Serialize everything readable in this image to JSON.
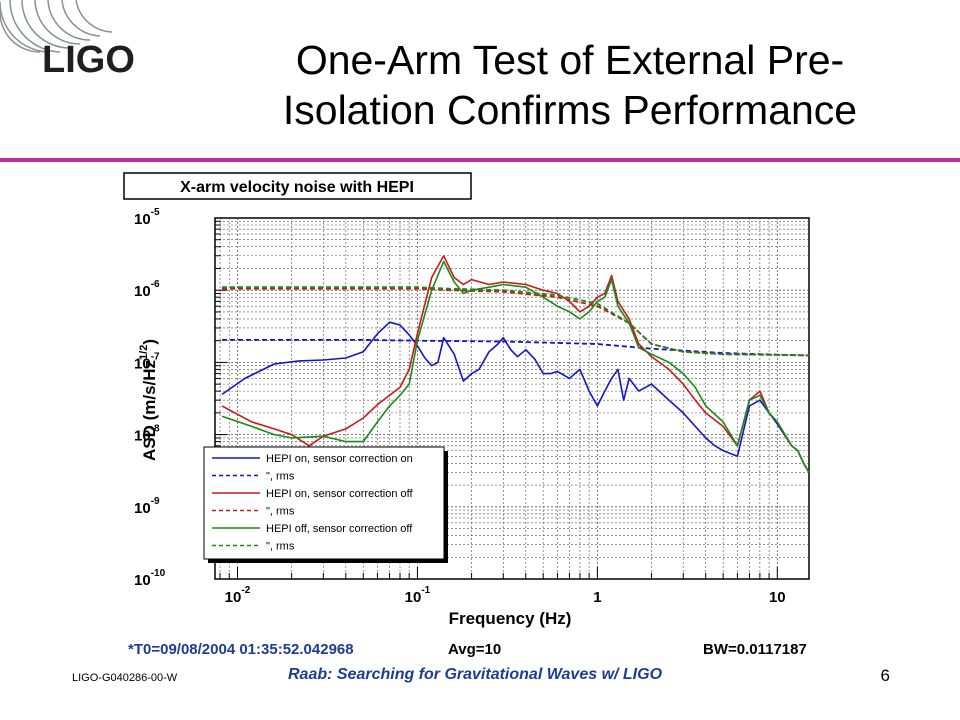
{
  "slide": {
    "logo_text": "LIGO",
    "title_line1": "One-Arm Test of External Pre-",
    "title_line2": "Isolation Confirms Performance",
    "doc_id": "LIGO-G040286-00-W",
    "footer_title": "Raab: Searching for Gravitational Waves w/ LIGO",
    "page_number": "6",
    "accent_color": "#c0309a",
    "footer_color": "#1e3c96"
  },
  "chart_data": {
    "type": "line",
    "title": "X-arm velocity noise with HEPI",
    "xlabel": "Frequency (Hz)",
    "ylabel_main": "ASD (m/s/Hz",
    "ylabel_sup": "1/2",
    "ylabel_close": ")",
    "x_scale": "log",
    "y_scale": "log",
    "xlim": [
      0.0075,
      15
    ],
    "ylim": [
      1e-10,
      1e-05
    ],
    "grid": true,
    "legend_position": "bottom-left",
    "x_ticks": [
      {
        "value": 0.01,
        "base": "10",
        "exp": "-2"
      },
      {
        "value": 0.1,
        "base": "10",
        "exp": "-1"
      },
      {
        "value": 1,
        "base": "1",
        "exp": ""
      },
      {
        "value": 10,
        "base": "10",
        "exp": ""
      }
    ],
    "y_ticks": [
      {
        "value": 1e-05,
        "base": "10",
        "exp": "-5"
      },
      {
        "value": 1e-06,
        "base": "10",
        "exp": "-6"
      },
      {
        "value": 1e-07,
        "base": "10",
        "exp": "-7"
      },
      {
        "value": 1e-08,
        "base": "10",
        "exp": "-8"
      },
      {
        "value": 1e-09,
        "base": "10",
        "exp": "-9"
      },
      {
        "value": 1e-10,
        "base": "10",
        "exp": "-10"
      }
    ],
    "footer": {
      "t0": "*T0=09/08/2004 01:35:52.042968",
      "avg": "Avg=10",
      "bw": "BW=0.0117187"
    },
    "series": [
      {
        "name": "HEPI on, sensor correction on",
        "color": "#1515c8",
        "dash": "solid",
        "points": [
          [
            0.0082,
            3.6e-08
          ],
          [
            0.011,
            6e-08
          ],
          [
            0.016,
            9.5e-08
          ],
          [
            0.022,
            1.05e-07
          ],
          [
            0.03,
            1.08e-07
          ],
          [
            0.04,
            1.15e-07
          ],
          [
            0.05,
            1.4e-07
          ],
          [
            0.06,
            2.5e-07
          ],
          [
            0.07,
            3.6e-07
          ],
          [
            0.08,
            3.3e-07
          ],
          [
            0.09,
            2.4e-07
          ],
          [
            0.1,
            1.7e-07
          ],
          [
            0.11,
            1.15e-07
          ],
          [
            0.12,
            9e-08
          ],
          [
            0.13,
            1e-07
          ],
          [
            0.14,
            2.2e-07
          ],
          [
            0.16,
            1.3e-07
          ],
          [
            0.18,
            5.5e-08
          ],
          [
            0.2,
            7e-08
          ],
          [
            0.22,
            8e-08
          ],
          [
            0.25,
            1.4e-07
          ],
          [
            0.28,
            1.8e-07
          ],
          [
            0.3,
            2.2e-07
          ],
          [
            0.33,
            1.5e-07
          ],
          [
            0.36,
            1.2e-07
          ],
          [
            0.4,
            1.5e-07
          ],
          [
            0.45,
            1.1e-07
          ],
          [
            0.5,
            7e-08
          ],
          [
            0.55,
            7e-08
          ],
          [
            0.6,
            7.5e-08
          ],
          [
            0.7,
            6e-08
          ],
          [
            0.8,
            8e-08
          ],
          [
            0.9,
            4e-08
          ],
          [
            1.0,
            2.5e-08
          ],
          [
            1.1,
            4e-08
          ],
          [
            1.2,
            6e-08
          ],
          [
            1.3,
            8e-08
          ],
          [
            1.4,
            3e-08
          ],
          [
            1.5,
            6e-08
          ],
          [
            1.7,
            4e-08
          ],
          [
            2.0,
            5e-08
          ],
          [
            2.5,
            3e-08
          ],
          [
            3.0,
            2e-08
          ],
          [
            3.5,
            1.3e-08
          ],
          [
            4.0,
            9e-09
          ],
          [
            4.5,
            7e-09
          ],
          [
            5.0,
            6e-09
          ],
          [
            6.0,
            5e-09
          ],
          [
            7.0,
            2.5e-08
          ],
          [
            8.0,
            3e-08
          ],
          [
            9.0,
            2e-08
          ],
          [
            10.0,
            1.4e-08
          ],
          [
            12.0,
            7e-09
          ],
          [
            13.0,
            6e-09
          ],
          [
            14.0,
            4e-09
          ],
          [
            15.0,
            3e-09
          ]
        ]
      },
      {
        "name": "\", rms",
        "color": "#1515c8",
        "dash": "dashed",
        "points": [
          [
            0.0082,
            2.05e-07
          ],
          [
            0.05,
            2.05e-07
          ],
          [
            0.1,
            2e-07
          ],
          [
            0.3,
            1.95e-07
          ],
          [
            1.0,
            1.8e-07
          ],
          [
            2.0,
            1.55e-07
          ],
          [
            5.0,
            1.35e-07
          ],
          [
            10.0,
            1.28e-07
          ],
          [
            15.0,
            1.25e-07
          ]
        ]
      },
      {
        "name": "HEPI on, sensor correction off",
        "color": "#c81a1a",
        "dash": "solid",
        "points": [
          [
            0.0082,
            2.5e-08
          ],
          [
            0.012,
            1.5e-08
          ],
          [
            0.016,
            1.2e-08
          ],
          [
            0.02,
            1e-08
          ],
          [
            0.025,
            7e-09
          ],
          [
            0.03,
            9.5e-09
          ],
          [
            0.04,
            1.2e-08
          ],
          [
            0.05,
            1.7e-08
          ],
          [
            0.06,
            2.6e-08
          ],
          [
            0.07,
            3.5e-08
          ],
          [
            0.08,
            4.5e-08
          ],
          [
            0.09,
            8e-08
          ],
          [
            0.1,
            2.5e-07
          ],
          [
            0.12,
            1.5e-06
          ],
          [
            0.14,
            3e-06
          ],
          [
            0.16,
            1.5e-06
          ],
          [
            0.18,
            1.2e-06
          ],
          [
            0.2,
            1.4e-06
          ],
          [
            0.25,
            1.2e-06
          ],
          [
            0.3,
            1.3e-06
          ],
          [
            0.4,
            1.2e-06
          ],
          [
            0.5,
            1e-06
          ],
          [
            0.6,
            9e-07
          ],
          [
            0.7,
            7e-07
          ],
          [
            0.8,
            5e-07
          ],
          [
            0.9,
            6e-07
          ],
          [
            1.0,
            8e-07
          ],
          [
            1.1,
            9e-07
          ],
          [
            1.2,
            1.6e-06
          ],
          [
            1.3,
            7e-07
          ],
          [
            1.5,
            4e-07
          ],
          [
            1.7,
            1.8e-07
          ],
          [
            2.0,
            1.2e-07
          ],
          [
            2.5,
            8e-08
          ],
          [
            3.0,
            5e-08
          ],
          [
            3.5,
            3e-08
          ],
          [
            4.0,
            2e-08
          ],
          [
            5.0,
            1.3e-08
          ],
          [
            6.0,
            7e-09
          ],
          [
            7.0,
            3e-08
          ],
          [
            8.0,
            4e-08
          ],
          [
            9.0,
            2e-08
          ],
          [
            10.0,
            1.5e-08
          ],
          [
            12.0,
            7e-09
          ],
          [
            13.0,
            6e-09
          ],
          [
            14.0,
            4e-09
          ],
          [
            15.0,
            3e-09
          ]
        ]
      },
      {
        "name": "\", rms",
        "color": "#c81a1a",
        "dash": "dashed",
        "points": [
          [
            0.0082,
            1.05e-06
          ],
          [
            0.05,
            1.05e-06
          ],
          [
            0.1,
            1.05e-06
          ],
          [
            0.15,
            1e-06
          ],
          [
            0.3,
            9.5e-07
          ],
          [
            0.6,
            8e-07
          ],
          [
            1.0,
            6e-07
          ],
          [
            1.5,
            3.5e-07
          ],
          [
            2.0,
            1.8e-07
          ],
          [
            3.0,
            1.4e-07
          ],
          [
            5.0,
            1.3e-07
          ],
          [
            10.0,
            1.27e-07
          ],
          [
            15.0,
            1.25e-07
          ]
        ]
      },
      {
        "name": "HEPI off, sensor correction off",
        "color": "#1a8a1a",
        "dash": "solid",
        "points": [
          [
            0.0082,
            1.8e-08
          ],
          [
            0.012,
            1.3e-08
          ],
          [
            0.016,
            1e-08
          ],
          [
            0.02,
            9e-09
          ],
          [
            0.03,
            9.5e-09
          ],
          [
            0.04,
            8e-09
          ],
          [
            0.05,
            8e-09
          ],
          [
            0.06,
            1.5e-08
          ],
          [
            0.07,
            2.5e-08
          ],
          [
            0.08,
            3.5e-08
          ],
          [
            0.09,
            5e-08
          ],
          [
            0.1,
            2e-07
          ],
          [
            0.12,
            1e-06
          ],
          [
            0.14,
            2.5e-06
          ],
          [
            0.16,
            1.3e-06
          ],
          [
            0.18,
            9e-07
          ],
          [
            0.2,
            1e-06
          ],
          [
            0.25,
            1.1e-06
          ],
          [
            0.3,
            1.2e-06
          ],
          [
            0.4,
            1.1e-06
          ],
          [
            0.5,
            8e-07
          ],
          [
            0.6,
            6e-07
          ],
          [
            0.7,
            5e-07
          ],
          [
            0.8,
            4e-07
          ],
          [
            0.9,
            5e-07
          ],
          [
            1.0,
            7e-07
          ],
          [
            1.1,
            8e-07
          ],
          [
            1.2,
            1.4e-06
          ],
          [
            1.3,
            6e-07
          ],
          [
            1.5,
            3.5e-07
          ],
          [
            1.7,
            1.6e-07
          ],
          [
            2.0,
            1.3e-07
          ],
          [
            2.5,
            1e-07
          ],
          [
            3.0,
            7e-08
          ],
          [
            3.5,
            4.5e-08
          ],
          [
            4.0,
            2.5e-08
          ],
          [
            5.0,
            1.5e-08
          ],
          [
            6.0,
            7e-09
          ],
          [
            7.0,
            3e-08
          ],
          [
            8.0,
            3.5e-08
          ],
          [
            9.0,
            2e-08
          ],
          [
            10.0,
            1.5e-08
          ],
          [
            12.0,
            7e-09
          ],
          [
            13.0,
            6e-09
          ],
          [
            14.0,
            4e-09
          ],
          [
            15.0,
            3e-09
          ]
        ]
      },
      {
        "name": "\", rms",
        "color": "#1a8a1a",
        "dash": "dashed",
        "points": [
          [
            0.0082,
            1.1e-06
          ],
          [
            0.05,
            1.1e-06
          ],
          [
            0.1,
            1.1e-06
          ],
          [
            0.15,
            1.05e-06
          ],
          [
            0.3,
            1e-06
          ],
          [
            0.6,
            8.5e-07
          ],
          [
            1.0,
            6.5e-07
          ],
          [
            1.5,
            3.5e-07
          ],
          [
            2.0,
            1.8e-07
          ],
          [
            3.0,
            1.4e-07
          ],
          [
            5.0,
            1.3e-07
          ],
          [
            10.0,
            1.27e-07
          ],
          [
            15.0,
            1.25e-07
          ]
        ]
      }
    ]
  }
}
